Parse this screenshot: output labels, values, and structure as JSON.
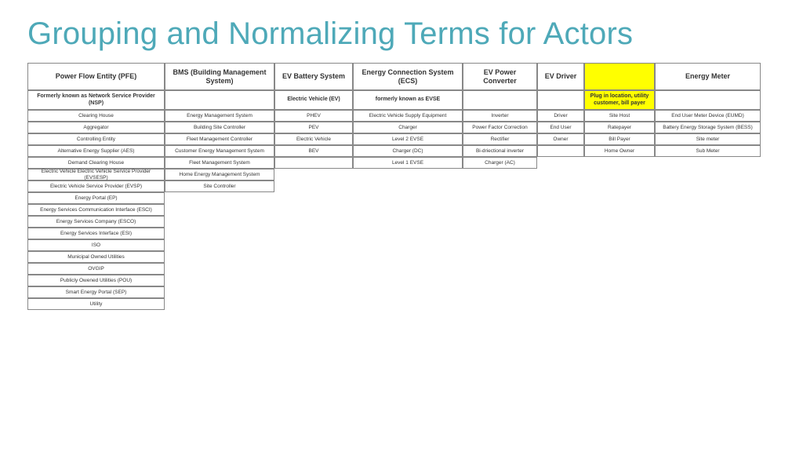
{
  "title": "Grouping and Normalizing Terms for Actors",
  "colors": {
    "title": "#4ea9b8",
    "highlight": "#ffff00",
    "border": "#888888",
    "background": "#ffffff",
    "text": "#333333"
  },
  "columns": [
    {
      "header": "Power Flow Entity (PFE)",
      "sub": "Formerly known as Network Service Provider (NSP)",
      "hl": false
    },
    {
      "header": "BMS (Building Management System)",
      "sub": "",
      "hl": false
    },
    {
      "header": "EV Battery System",
      "sub": "Electric Vehicle (EV)",
      "hl": false
    },
    {
      "header": "Energy Connection System (ECS)",
      "sub": "formerly known as EVSE",
      "hl": false
    },
    {
      "header": "EV Power Converter",
      "sub": "",
      "hl": false
    },
    {
      "header": "EV Driver",
      "sub": "",
      "hl": false
    },
    {
      "header": "",
      "sub": "Plug in location, utility customer, bill payer",
      "hl": true
    },
    {
      "header": "Energy Meter",
      "sub": "",
      "hl": false
    }
  ],
  "rows": [
    [
      "Clearing House",
      "Energy Management System",
      "PHEV",
      "Electric Vehicle Supply Equipment",
      "Inverter",
      "Driver",
      "Site Host",
      "End User Meter Device (EUMD)"
    ],
    [
      "Aggregator",
      "Building Site Controller",
      "PEV",
      "Charger",
      "Power Factor Correction",
      "End User",
      "Ratepayer",
      "Battery Energy Storage System (BESS)"
    ],
    [
      "Controlling Entity",
      "Fleet Management Controller",
      "Electric Vehicle",
      "Level 2 EVSE",
      "Rectifier",
      "Owner",
      "Bill Payer",
      "Site meter"
    ],
    [
      "Alternative Energy Supplier (AES)",
      "Customer Energy Management System",
      "BEV",
      "Charger (DC)",
      "Bi-driectional inverter",
      "",
      "Home Owner",
      "Sub Meter"
    ],
    [
      "Demand Clearing House",
      "Fleet Management System",
      "",
      "Level 1 EVSE",
      "Charger (AC)",
      "",
      "",
      ""
    ],
    [
      "Electric Vehicle Electric Vehicle Service Provider (EVSESP)",
      "Home Energy Management System",
      "",
      "",
      "",
      "",
      "",
      ""
    ],
    [
      "Electric Vehicle Service Provider (EVSP)",
      "Site Controller",
      "",
      "",
      "",
      "",
      "",
      ""
    ],
    [
      "Energy Portal (EP)",
      "",
      "",
      "",
      "",
      "",
      "",
      ""
    ],
    [
      "Energy Services Communication Interface (ESCI)",
      "",
      "",
      "",
      "",
      "",
      "",
      ""
    ],
    [
      "Energy Services Company (ESCO)",
      "",
      "",
      "",
      "",
      "",
      "",
      ""
    ],
    [
      "Energy Services Interface (ESI)",
      "",
      "",
      "",
      "",
      "",
      "",
      ""
    ],
    [
      "ISO",
      "",
      "",
      "",
      "",
      "",
      "",
      ""
    ],
    [
      "Municipal Owned Utilities",
      "",
      "",
      "",
      "",
      "",
      "",
      ""
    ],
    [
      "OVGIP",
      "",
      "",
      "",
      "",
      "",
      "",
      ""
    ],
    [
      "Publicly Owened Utilities (POU)",
      "",
      "",
      "",
      "",
      "",
      "",
      ""
    ],
    [
      "Smart Energy Portal (SEP)",
      "",
      "",
      "",
      "",
      "",
      "",
      ""
    ],
    [
      "Utility",
      "",
      "",
      "",
      "",
      "",
      "",
      ""
    ]
  ],
  "colCount": [
    8,
    8,
    5,
    5,
    8,
    8,
    8,
    8,
    2,
    2,
    1,
    1,
    1,
    1,
    1,
    1,
    1,
    1,
    1
  ]
}
